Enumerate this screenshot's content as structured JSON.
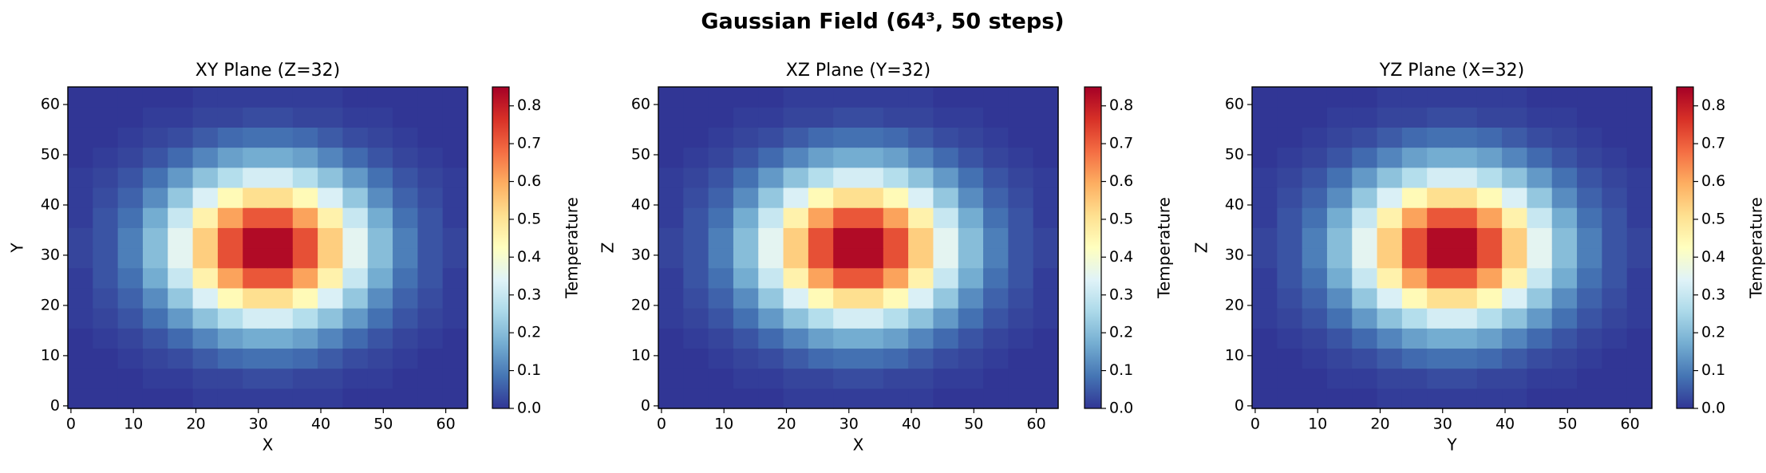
{
  "title": "Gaussian Field (64³, 50 steps)",
  "chart_data": [
    {
      "type": "heatmap",
      "title": "XY Plane (Z=32)",
      "xlabel": "X",
      "ylabel": "Y",
      "colormap": "RdYlBu_r",
      "x": [
        1.5,
        5.5,
        9.5,
        13.5,
        17.5,
        21.5,
        25.5,
        29.5,
        33.5,
        37.5,
        41.5,
        45.5,
        49.5,
        53.5,
        57.5,
        61.5
      ],
      "y": [
        1.5,
        5.5,
        9.5,
        13.5,
        17.5,
        21.5,
        25.5,
        29.5,
        33.5,
        37.5,
        41.5,
        45.5,
        49.5,
        53.5,
        57.5,
        61.5
      ],
      "values": [
        [
          0,
          0,
          0,
          0,
          0,
          0.01,
          0.01,
          0.01,
          0.01,
          0.01,
          0.01,
          0,
          0,
          0,
          0,
          0
        ],
        [
          0,
          0,
          0,
          0.01,
          0.01,
          0.02,
          0.02,
          0.03,
          0.03,
          0.02,
          0.02,
          0.01,
          0.01,
          0,
          0,
          0
        ],
        [
          0,
          0,
          0.01,
          0.02,
          0.03,
          0.05,
          0.07,
          0.08,
          0.08,
          0.07,
          0.05,
          0.03,
          0.02,
          0.01,
          0,
          0
        ],
        [
          0,
          0.01,
          0.02,
          0.04,
          0.07,
          0.11,
          0.15,
          0.17,
          0.17,
          0.15,
          0.11,
          0.07,
          0.04,
          0.02,
          0.01,
          0
        ],
        [
          0.01,
          0.02,
          0.04,
          0.08,
          0.14,
          0.21,
          0.27,
          0.32,
          0.32,
          0.27,
          0.21,
          0.14,
          0.08,
          0.04,
          0.02,
          0.01
        ],
        [
          0.01,
          0.03,
          0.06,
          0.12,
          0.22,
          0.33,
          0.44,
          0.51,
          0.51,
          0.44,
          0.33,
          0.22,
          0.12,
          0.06,
          0.03,
          0.01
        ],
        [
          0.01,
          0.04,
          0.08,
          0.17,
          0.3,
          0.46,
          0.61,
          0.71,
          0.71,
          0.61,
          0.46,
          0.3,
          0.17,
          0.08,
          0.04,
          0.01
        ],
        [
          0.02,
          0.04,
          0.1,
          0.2,
          0.35,
          0.54,
          0.72,
          0.83,
          0.83,
          0.72,
          0.54,
          0.35,
          0.2,
          0.1,
          0.04,
          0.02
        ],
        [
          0.02,
          0.04,
          0.1,
          0.2,
          0.35,
          0.54,
          0.72,
          0.83,
          0.83,
          0.72,
          0.54,
          0.35,
          0.2,
          0.1,
          0.04,
          0.02
        ],
        [
          0.01,
          0.04,
          0.08,
          0.17,
          0.3,
          0.46,
          0.61,
          0.71,
          0.71,
          0.61,
          0.46,
          0.3,
          0.17,
          0.08,
          0.04,
          0.01
        ],
        [
          0.01,
          0.03,
          0.06,
          0.12,
          0.22,
          0.33,
          0.44,
          0.51,
          0.51,
          0.44,
          0.33,
          0.22,
          0.12,
          0.06,
          0.03,
          0.01
        ],
        [
          0.01,
          0.02,
          0.04,
          0.08,
          0.14,
          0.21,
          0.27,
          0.32,
          0.32,
          0.27,
          0.21,
          0.14,
          0.08,
          0.04,
          0.02,
          0.01
        ],
        [
          0,
          0.01,
          0.02,
          0.04,
          0.07,
          0.11,
          0.15,
          0.17,
          0.17,
          0.15,
          0.11,
          0.07,
          0.04,
          0.02,
          0.01,
          0
        ],
        [
          0,
          0,
          0.01,
          0.02,
          0.03,
          0.05,
          0.07,
          0.08,
          0.08,
          0.07,
          0.05,
          0.03,
          0.02,
          0.01,
          0,
          0
        ],
        [
          0,
          0,
          0,
          0.01,
          0.01,
          0.02,
          0.02,
          0.03,
          0.03,
          0.02,
          0.02,
          0.01,
          0.01,
          0,
          0,
          0
        ],
        [
          0,
          0,
          0,
          0,
          0,
          0.01,
          0.01,
          0.01,
          0.01,
          0.01,
          0.01,
          0,
          0,
          0,
          0,
          0
        ]
      ],
      "xlim": [
        -0.5,
        63.5
      ],
      "ylim": [
        -0.5,
        63.5
      ],
      "xticks": [
        0,
        10,
        20,
        30,
        40,
        50,
        60
      ],
      "yticks": [
        0,
        10,
        20,
        30,
        40,
        50,
        60
      ],
      "colorbar": {
        "label": "Temperature",
        "lim": [
          0,
          0.85
        ],
        "ticks": [
          {
            "value": 0,
            "label": "0.0"
          },
          {
            "value": 0.1,
            "label": "0.1"
          },
          {
            "value": 0.2,
            "label": "0.2"
          },
          {
            "value": 0.3,
            "label": "0.3"
          },
          {
            "value": 0.4,
            "label": "0.4"
          },
          {
            "value": 0.5,
            "label": "0.5"
          },
          {
            "value": 0.6,
            "label": "0.6"
          },
          {
            "value": 0.7,
            "label": "0.7"
          },
          {
            "value": 0.8,
            "label": "0.8"
          }
        ]
      }
    },
    {
      "type": "heatmap",
      "title": "XZ Plane (Y=32)",
      "xlabel": "X",
      "ylabel": "Z",
      "colormap": "RdYlBu_r",
      "x": [
        1.5,
        5.5,
        9.5,
        13.5,
        17.5,
        21.5,
        25.5,
        29.5,
        33.5,
        37.5,
        41.5,
        45.5,
        49.5,
        53.5,
        57.5,
        61.5
      ],
      "y": [
        1.5,
        5.5,
        9.5,
        13.5,
        17.5,
        21.5,
        25.5,
        29.5,
        33.5,
        37.5,
        41.5,
        45.5,
        49.5,
        53.5,
        57.5,
        61.5
      ],
      "values": [
        [
          0,
          0,
          0,
          0,
          0,
          0.01,
          0.01,
          0.01,
          0.01,
          0.01,
          0.01,
          0,
          0,
          0,
          0,
          0
        ],
        [
          0,
          0,
          0,
          0.01,
          0.01,
          0.02,
          0.02,
          0.03,
          0.03,
          0.02,
          0.02,
          0.01,
          0.01,
          0,
          0,
          0
        ],
        [
          0,
          0,
          0.01,
          0.02,
          0.03,
          0.05,
          0.07,
          0.08,
          0.08,
          0.07,
          0.05,
          0.03,
          0.02,
          0.01,
          0,
          0
        ],
        [
          0,
          0.01,
          0.02,
          0.04,
          0.07,
          0.11,
          0.15,
          0.17,
          0.17,
          0.15,
          0.11,
          0.07,
          0.04,
          0.02,
          0.01,
          0
        ],
        [
          0.01,
          0.02,
          0.04,
          0.08,
          0.14,
          0.21,
          0.27,
          0.32,
          0.32,
          0.27,
          0.21,
          0.14,
          0.08,
          0.04,
          0.02,
          0.01
        ],
        [
          0.01,
          0.03,
          0.06,
          0.12,
          0.22,
          0.33,
          0.44,
          0.51,
          0.51,
          0.44,
          0.33,
          0.22,
          0.12,
          0.06,
          0.03,
          0.01
        ],
        [
          0.01,
          0.04,
          0.08,
          0.17,
          0.3,
          0.46,
          0.61,
          0.71,
          0.71,
          0.61,
          0.46,
          0.3,
          0.17,
          0.08,
          0.04,
          0.01
        ],
        [
          0.02,
          0.04,
          0.1,
          0.2,
          0.35,
          0.54,
          0.72,
          0.83,
          0.83,
          0.72,
          0.54,
          0.35,
          0.2,
          0.1,
          0.04,
          0.02
        ],
        [
          0.02,
          0.04,
          0.1,
          0.2,
          0.35,
          0.54,
          0.72,
          0.83,
          0.83,
          0.72,
          0.54,
          0.35,
          0.2,
          0.1,
          0.04,
          0.02
        ],
        [
          0.01,
          0.04,
          0.08,
          0.17,
          0.3,
          0.46,
          0.61,
          0.71,
          0.71,
          0.61,
          0.46,
          0.3,
          0.17,
          0.08,
          0.04,
          0.01
        ],
        [
          0.01,
          0.03,
          0.06,
          0.12,
          0.22,
          0.33,
          0.44,
          0.51,
          0.51,
          0.44,
          0.33,
          0.22,
          0.12,
          0.06,
          0.03,
          0.01
        ],
        [
          0.01,
          0.02,
          0.04,
          0.08,
          0.14,
          0.21,
          0.27,
          0.32,
          0.32,
          0.27,
          0.21,
          0.14,
          0.08,
          0.04,
          0.02,
          0.01
        ],
        [
          0,
          0.01,
          0.02,
          0.04,
          0.07,
          0.11,
          0.15,
          0.17,
          0.17,
          0.15,
          0.11,
          0.07,
          0.04,
          0.02,
          0.01,
          0
        ],
        [
          0,
          0,
          0.01,
          0.02,
          0.03,
          0.05,
          0.07,
          0.08,
          0.08,
          0.07,
          0.05,
          0.03,
          0.02,
          0.01,
          0,
          0
        ],
        [
          0,
          0,
          0,
          0.01,
          0.01,
          0.02,
          0.02,
          0.03,
          0.03,
          0.02,
          0.02,
          0.01,
          0.01,
          0,
          0,
          0
        ],
        [
          0,
          0,
          0,
          0,
          0,
          0.01,
          0.01,
          0.01,
          0.01,
          0.01,
          0.01,
          0,
          0,
          0,
          0,
          0
        ]
      ],
      "xlim": [
        -0.5,
        63.5
      ],
      "ylim": [
        -0.5,
        63.5
      ],
      "xticks": [
        0,
        10,
        20,
        30,
        40,
        50,
        60
      ],
      "yticks": [
        0,
        10,
        20,
        30,
        40,
        50,
        60
      ],
      "colorbar": {
        "label": "Temperature",
        "lim": [
          0,
          0.85
        ],
        "ticks": [
          {
            "value": 0,
            "label": "0.0"
          },
          {
            "value": 0.1,
            "label": "0.1"
          },
          {
            "value": 0.2,
            "label": "0.2"
          },
          {
            "value": 0.3,
            "label": "0.3"
          },
          {
            "value": 0.4,
            "label": "0.4"
          },
          {
            "value": 0.5,
            "label": "0.5"
          },
          {
            "value": 0.6,
            "label": "0.6"
          },
          {
            "value": 0.7,
            "label": "0.7"
          },
          {
            "value": 0.8,
            "label": "0.8"
          }
        ]
      }
    },
    {
      "type": "heatmap",
      "title": "YZ Plane (X=32)",
      "xlabel": "Y",
      "ylabel": "Z",
      "colormap": "RdYlBu_r",
      "x": [
        1.5,
        5.5,
        9.5,
        13.5,
        17.5,
        21.5,
        25.5,
        29.5,
        33.5,
        37.5,
        41.5,
        45.5,
        49.5,
        53.5,
        57.5,
        61.5
      ],
      "y": [
        1.5,
        5.5,
        9.5,
        13.5,
        17.5,
        21.5,
        25.5,
        29.5,
        33.5,
        37.5,
        41.5,
        45.5,
        49.5,
        53.5,
        57.5,
        61.5
      ],
      "values": [
        [
          0,
          0,
          0,
          0,
          0,
          0.01,
          0.01,
          0.01,
          0.01,
          0.01,
          0.01,
          0,
          0,
          0,
          0,
          0
        ],
        [
          0,
          0,
          0,
          0.01,
          0.01,
          0.02,
          0.02,
          0.03,
          0.03,
          0.02,
          0.02,
          0.01,
          0.01,
          0,
          0,
          0
        ],
        [
          0,
          0,
          0.01,
          0.02,
          0.03,
          0.05,
          0.07,
          0.08,
          0.08,
          0.07,
          0.05,
          0.03,
          0.02,
          0.01,
          0,
          0
        ],
        [
          0,
          0.01,
          0.02,
          0.04,
          0.07,
          0.11,
          0.15,
          0.17,
          0.17,
          0.15,
          0.11,
          0.07,
          0.04,
          0.02,
          0.01,
          0
        ],
        [
          0.01,
          0.02,
          0.04,
          0.08,
          0.14,
          0.21,
          0.27,
          0.32,
          0.32,
          0.27,
          0.21,
          0.14,
          0.08,
          0.04,
          0.02,
          0.01
        ],
        [
          0.01,
          0.03,
          0.06,
          0.12,
          0.22,
          0.33,
          0.44,
          0.51,
          0.51,
          0.44,
          0.33,
          0.22,
          0.12,
          0.06,
          0.03,
          0.01
        ],
        [
          0.01,
          0.04,
          0.08,
          0.17,
          0.3,
          0.46,
          0.61,
          0.71,
          0.71,
          0.61,
          0.46,
          0.3,
          0.17,
          0.08,
          0.04,
          0.01
        ],
        [
          0.02,
          0.04,
          0.1,
          0.2,
          0.35,
          0.54,
          0.72,
          0.83,
          0.83,
          0.72,
          0.54,
          0.35,
          0.2,
          0.1,
          0.04,
          0.02
        ],
        [
          0.02,
          0.04,
          0.1,
          0.2,
          0.35,
          0.54,
          0.72,
          0.83,
          0.83,
          0.72,
          0.54,
          0.35,
          0.2,
          0.1,
          0.04,
          0.02
        ],
        [
          0.01,
          0.04,
          0.08,
          0.17,
          0.3,
          0.46,
          0.61,
          0.71,
          0.71,
          0.61,
          0.46,
          0.3,
          0.17,
          0.08,
          0.04,
          0.01
        ],
        [
          0.01,
          0.03,
          0.06,
          0.12,
          0.22,
          0.33,
          0.44,
          0.51,
          0.51,
          0.44,
          0.33,
          0.22,
          0.12,
          0.06,
          0.03,
          0.01
        ],
        [
          0.01,
          0.02,
          0.04,
          0.08,
          0.14,
          0.21,
          0.27,
          0.32,
          0.32,
          0.27,
          0.21,
          0.14,
          0.08,
          0.04,
          0.02,
          0.01
        ],
        [
          0,
          0.01,
          0.02,
          0.04,
          0.07,
          0.11,
          0.15,
          0.17,
          0.17,
          0.15,
          0.11,
          0.07,
          0.04,
          0.02,
          0.01,
          0
        ],
        [
          0,
          0,
          0.01,
          0.02,
          0.03,
          0.05,
          0.07,
          0.08,
          0.08,
          0.07,
          0.05,
          0.03,
          0.02,
          0.01,
          0,
          0
        ],
        [
          0,
          0,
          0,
          0.01,
          0.01,
          0.02,
          0.02,
          0.03,
          0.03,
          0.02,
          0.02,
          0.01,
          0.01,
          0,
          0,
          0
        ],
        [
          0,
          0,
          0,
          0,
          0,
          0.01,
          0.01,
          0.01,
          0.01,
          0.01,
          0.01,
          0,
          0,
          0,
          0,
          0
        ]
      ],
      "xlim": [
        -0.5,
        63.5
      ],
      "ylim": [
        -0.5,
        63.5
      ],
      "xticks": [
        0,
        10,
        20,
        30,
        40,
        50,
        60
      ],
      "yticks": [
        0,
        10,
        20,
        30,
        40,
        50,
        60
      ],
      "colorbar": {
        "label": "Temperature",
        "lim": [
          0,
          0.85
        ],
        "ticks": [
          {
            "value": 0,
            "label": "0.0"
          },
          {
            "value": 0.1,
            "label": "0.1"
          },
          {
            "value": 0.2,
            "label": "0.2"
          },
          {
            "value": 0.3,
            "label": "0.3"
          },
          {
            "value": 0.4,
            "label": "0.4"
          },
          {
            "value": 0.5,
            "label": "0.5"
          },
          {
            "value": 0.6,
            "label": "0.6"
          },
          {
            "value": 0.7,
            "label": "0.7"
          },
          {
            "value": 0.8,
            "label": "0.8"
          }
        ]
      }
    }
  ]
}
